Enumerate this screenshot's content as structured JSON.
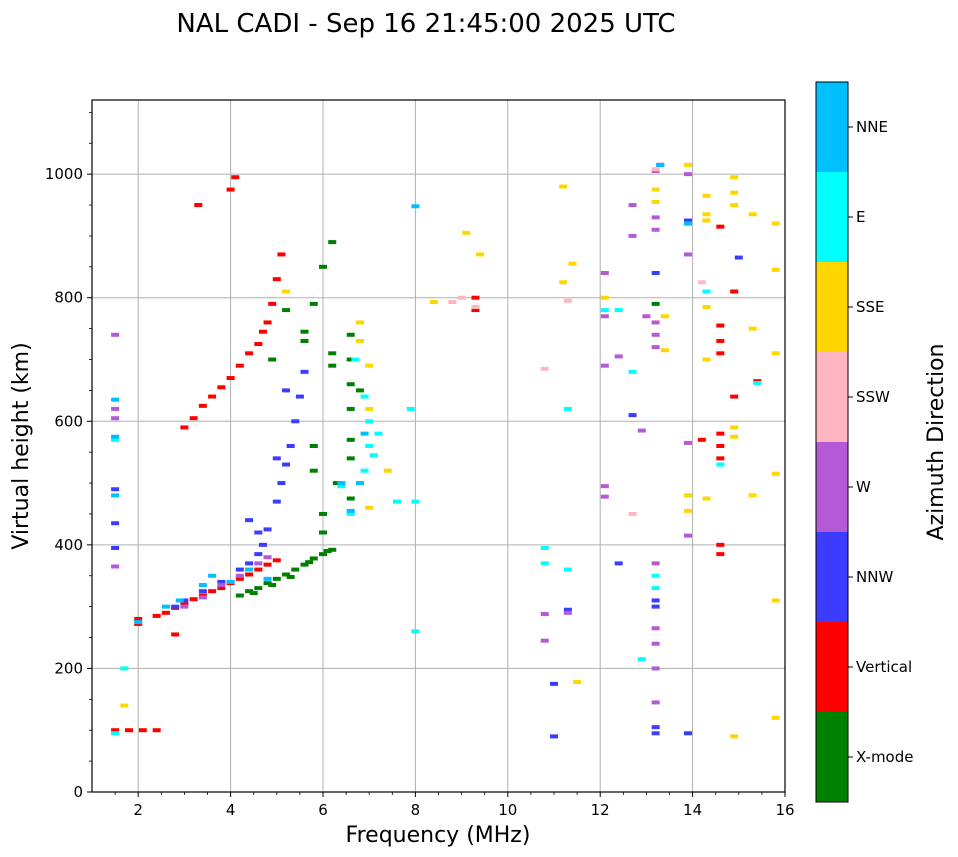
{
  "chart_data": {
    "type": "scatter",
    "title": "NAL CADI - Sep 16 21:45:00 2025 UTC",
    "xlabel": "Frequency (MHz)",
    "ylabel": "Virtual height (km)",
    "xlim": [
      1,
      16
    ],
    "ylim": [
      0,
      1120
    ],
    "xticks": [
      2,
      4,
      6,
      8,
      10,
      12,
      14,
      16
    ],
    "yticks": [
      0,
      200,
      400,
      600,
      800,
      1000
    ],
    "grid": true,
    "colorbar": {
      "title": "Azimuth Direction",
      "position": "right",
      "categories": [
        {
          "name": "X-mode",
          "color": "#008000"
        },
        {
          "name": "Vertical",
          "color": "#ff0000"
        },
        {
          "name": "NNW",
          "color": "#3c3cff"
        },
        {
          "name": "W",
          "color": "#b55ad6"
        },
        {
          "name": "SSW",
          "color": "#ffb6c1"
        },
        {
          "name": "SSE",
          "color": "#ffd700"
        },
        {
          "name": "E",
          "color": "#00ffff"
        },
        {
          "name": "NNE",
          "color": "#00bfff"
        }
      ]
    },
    "series": [
      {
        "name": "X-mode",
        "points": [
          [
            4.2,
            318
          ],
          [
            4.4,
            325
          ],
          [
            4.6,
            330
          ],
          [
            4.8,
            338
          ],
          [
            5.0,
            345
          ],
          [
            5.2,
            352
          ],
          [
            5.4,
            360
          ],
          [
            5.6,
            368
          ],
          [
            5.8,
            378
          ],
          [
            6.0,
            385
          ],
          [
            6.2,
            392
          ],
          [
            4.5,
            322
          ],
          [
            4.9,
            335
          ],
          [
            5.3,
            348
          ],
          [
            5.7,
            372
          ],
          [
            6.1,
            390
          ],
          [
            5.6,
            730
          ],
          [
            5.6,
            745
          ],
          [
            6.0,
            850
          ],
          [
            6.2,
            890
          ],
          [
            6.2,
            710
          ],
          [
            6.2,
            690
          ],
          [
            6.6,
            740
          ],
          [
            6.6,
            700
          ],
          [
            6.6,
            660
          ],
          [
            6.6,
            620
          ],
          [
            6.6,
            570
          ],
          [
            6.6,
            540
          ],
          [
            6.6,
            475
          ],
          [
            6.3,
            500
          ],
          [
            6.8,
            650
          ],
          [
            5.8,
            560
          ],
          [
            5.8,
            520
          ],
          [
            6.0,
            450
          ],
          [
            6.0,
            420
          ],
          [
            4.9,
            700
          ],
          [
            5.2,
            780
          ],
          [
            5.8,
            790
          ],
          [
            13.2,
            790
          ]
        ]
      },
      {
        "name": "Vertical",
        "points": [
          [
            2.0,
            280
          ],
          [
            2.4,
            285
          ],
          [
            2.6,
            290
          ],
          [
            2.8,
            298
          ],
          [
            3.0,
            305
          ],
          [
            3.2,
            312
          ],
          [
            3.4,
            318
          ],
          [
            3.6,
            325
          ],
          [
            3.8,
            330
          ],
          [
            4.0,
            338
          ],
          [
            4.2,
            345
          ],
          [
            4.4,
            352
          ],
          [
            4.6,
            360
          ],
          [
            4.8,
            368
          ],
          [
            5.0,
            375
          ],
          [
            3.0,
            590
          ],
          [
            3.2,
            605
          ],
          [
            3.4,
            625
          ],
          [
            3.6,
            640
          ],
          [
            3.8,
            655
          ],
          [
            4.0,
            670
          ],
          [
            4.2,
            690
          ],
          [
            4.4,
            710
          ],
          [
            4.6,
            725
          ],
          [
            4.7,
            745
          ],
          [
            4.8,
            760
          ],
          [
            4.9,
            790
          ],
          [
            5.0,
            830
          ],
          [
            5.1,
            870
          ],
          [
            3.3,
            950
          ],
          [
            4.0,
            975
          ],
          [
            4.1,
            995
          ],
          [
            1.5,
            100
          ],
          [
            1.8,
            100
          ],
          [
            2.1,
            100
          ],
          [
            2.4,
            100
          ],
          [
            9.3,
            800
          ],
          [
            9.3,
            780
          ],
          [
            14.6,
            755
          ],
          [
            14.6,
            730
          ],
          [
            14.6,
            710
          ],
          [
            14.6,
            580
          ],
          [
            14.6,
            560
          ],
          [
            14.6,
            540
          ],
          [
            14.6,
            400
          ],
          [
            14.6,
            385
          ],
          [
            14.6,
            915
          ],
          [
            14.9,
            810
          ],
          [
            14.9,
            640
          ],
          [
            15.4,
            665
          ],
          [
            14.2,
            570
          ],
          [
            2.8,
            255
          ],
          [
            2.0,
            272
          ]
        ]
      },
      {
        "name": "NNW",
        "points": [
          [
            2.8,
            300
          ],
          [
            3.0,
            310
          ],
          [
            3.4,
            325
          ],
          [
            3.8,
            340
          ],
          [
            4.2,
            360
          ],
          [
            4.4,
            370
          ],
          [
            4.6,
            385
          ],
          [
            4.7,
            400
          ],
          [
            4.8,
            425
          ],
          [
            5.0,
            470
          ],
          [
            5.1,
            500
          ],
          [
            5.2,
            530
          ],
          [
            5.3,
            560
          ],
          [
            5.4,
            600
          ],
          [
            5.5,
            640
          ],
          [
            5.6,
            680
          ],
          [
            5.0,
            540
          ],
          [
            5.2,
            650
          ],
          [
            4.4,
            440
          ],
          [
            4.6,
            420
          ],
          [
            1.5,
            490
          ],
          [
            1.5,
            435
          ],
          [
            1.5,
            395
          ],
          [
            11.0,
            175
          ],
          [
            11.0,
            90
          ],
          [
            11.3,
            295
          ],
          [
            13.2,
            840
          ],
          [
            13.2,
            310
          ],
          [
            13.2,
            300
          ],
          [
            13.2,
            105
          ],
          [
            13.2,
            95
          ],
          [
            12.7,
            610
          ],
          [
            12.4,
            370
          ],
          [
            13.9,
            925
          ],
          [
            13.9,
            95
          ],
          [
            15.0,
            865
          ],
          [
            13.3,
            1015
          ]
        ]
      },
      {
        "name": "W",
        "points": [
          [
            3.0,
            300
          ],
          [
            3.4,
            315
          ],
          [
            3.8,
            335
          ],
          [
            4.2,
            350
          ],
          [
            4.6,
            370
          ],
          [
            4.8,
            380
          ],
          [
            1.5,
            620
          ],
          [
            1.5,
            605
          ],
          [
            1.5,
            740
          ],
          [
            1.5,
            365
          ],
          [
            10.8,
            245
          ],
          [
            10.8,
            288
          ],
          [
            11.3,
            290
          ],
          [
            12.1,
            840
          ],
          [
            12.1,
            770
          ],
          [
            12.1,
            690
          ],
          [
            12.1,
            495
          ],
          [
            12.1,
            478
          ],
          [
            12.7,
            950
          ],
          [
            12.7,
            900
          ],
          [
            13.0,
            770
          ],
          [
            13.2,
            930
          ],
          [
            13.2,
            910
          ],
          [
            13.2,
            760
          ],
          [
            13.2,
            740
          ],
          [
            13.2,
            720
          ],
          [
            13.2,
            370
          ],
          [
            13.2,
            265
          ],
          [
            13.2,
            240
          ],
          [
            13.2,
            200
          ],
          [
            13.2,
            145
          ],
          [
            13.9,
            1000
          ],
          [
            13.9,
            565
          ],
          [
            13.9,
            415
          ],
          [
            13.2,
            1005
          ],
          [
            12.4,
            705
          ],
          [
            12.9,
            585
          ],
          [
            13.9,
            870
          ]
        ]
      },
      {
        "name": "SSW",
        "points": [
          [
            8.8,
            793
          ],
          [
            9.0,
            800
          ],
          [
            9.3,
            785
          ],
          [
            14.2,
            825
          ],
          [
            10.8,
            685
          ],
          [
            11.3,
            795
          ],
          [
            12.7,
            450
          ],
          [
            13.2,
            1008
          ]
        ]
      },
      {
        "name": "SSE",
        "points": [
          [
            5.2,
            810
          ],
          [
            6.8,
            760
          ],
          [
            6.8,
            730
          ],
          [
            7.0,
            690
          ],
          [
            7.0,
            620
          ],
          [
            7.0,
            460
          ],
          [
            7.4,
            520
          ],
          [
            8.4,
            793
          ],
          [
            9.1,
            905
          ],
          [
            9.4,
            870
          ],
          [
            11.2,
            980
          ],
          [
            11.2,
            825
          ],
          [
            11.4,
            855
          ],
          [
            11.5,
            178
          ],
          [
            12.1,
            800
          ],
          [
            13.2,
            975
          ],
          [
            13.2,
            955
          ],
          [
            13.4,
            770
          ],
          [
            13.4,
            715
          ],
          [
            13.9,
            480
          ],
          [
            13.9,
            455
          ],
          [
            13.9,
            1015
          ],
          [
            14.3,
            965
          ],
          [
            14.3,
            935
          ],
          [
            14.3,
            925
          ],
          [
            14.3,
            785
          ],
          [
            14.3,
            700
          ],
          [
            14.3,
            475
          ],
          [
            14.9,
            995
          ],
          [
            14.9,
            970
          ],
          [
            14.9,
            950
          ],
          [
            14.9,
            590
          ],
          [
            14.9,
            575
          ],
          [
            14.9,
            90
          ],
          [
            15.3,
            935
          ],
          [
            15.3,
            750
          ],
          [
            15.3,
            480
          ],
          [
            15.8,
            920
          ],
          [
            15.8,
            845
          ],
          [
            15.8,
            710
          ],
          [
            15.8,
            515
          ],
          [
            15.8,
            310
          ],
          [
            15.8,
            120
          ],
          [
            1.7,
            140
          ]
        ]
      },
      {
        "name": "E",
        "points": [
          [
            1.5,
            570
          ],
          [
            1.5,
            95
          ],
          [
            1.7,
            200
          ],
          [
            6.7,
            700
          ],
          [
            6.9,
            640
          ],
          [
            7.0,
            600
          ],
          [
            7.0,
            560
          ],
          [
            7.1,
            545
          ],
          [
            7.2,
            580
          ],
          [
            6.9,
            520
          ],
          [
            6.6,
            450
          ],
          [
            6.4,
            495
          ],
          [
            7.6,
            470
          ],
          [
            7.9,
            620
          ],
          [
            8.0,
            470
          ],
          [
            8.0,
            260
          ],
          [
            10.8,
            395
          ],
          [
            10.8,
            370
          ],
          [
            11.3,
            360
          ],
          [
            11.3,
            620
          ],
          [
            12.1,
            780
          ],
          [
            12.4,
            780
          ],
          [
            12.7,
            680
          ],
          [
            12.9,
            215
          ],
          [
            13.2,
            350
          ],
          [
            13.2,
            330
          ],
          [
            13.9,
            920
          ],
          [
            14.3,
            810
          ],
          [
            14.6,
            530
          ],
          [
            15.4,
            662
          ]
        ]
      },
      {
        "name": "NNE",
        "points": [
          [
            1.5,
            635
          ],
          [
            1.5,
            575
          ],
          [
            1.5,
            480
          ],
          [
            2.0,
            275
          ],
          [
            2.6,
            300
          ],
          [
            2.9,
            310
          ],
          [
            3.4,
            335
          ],
          [
            3.6,
            350
          ],
          [
            4.0,
            340
          ],
          [
            4.4,
            360
          ],
          [
            4.8,
            345
          ],
          [
            6.6,
            455
          ],
          [
            6.4,
            500
          ],
          [
            6.8,
            500
          ],
          [
            6.9,
            580
          ],
          [
            13.9,
            920
          ],
          [
            13.3,
            1015
          ],
          [
            8.0,
            948
          ]
        ]
      }
    ]
  }
}
